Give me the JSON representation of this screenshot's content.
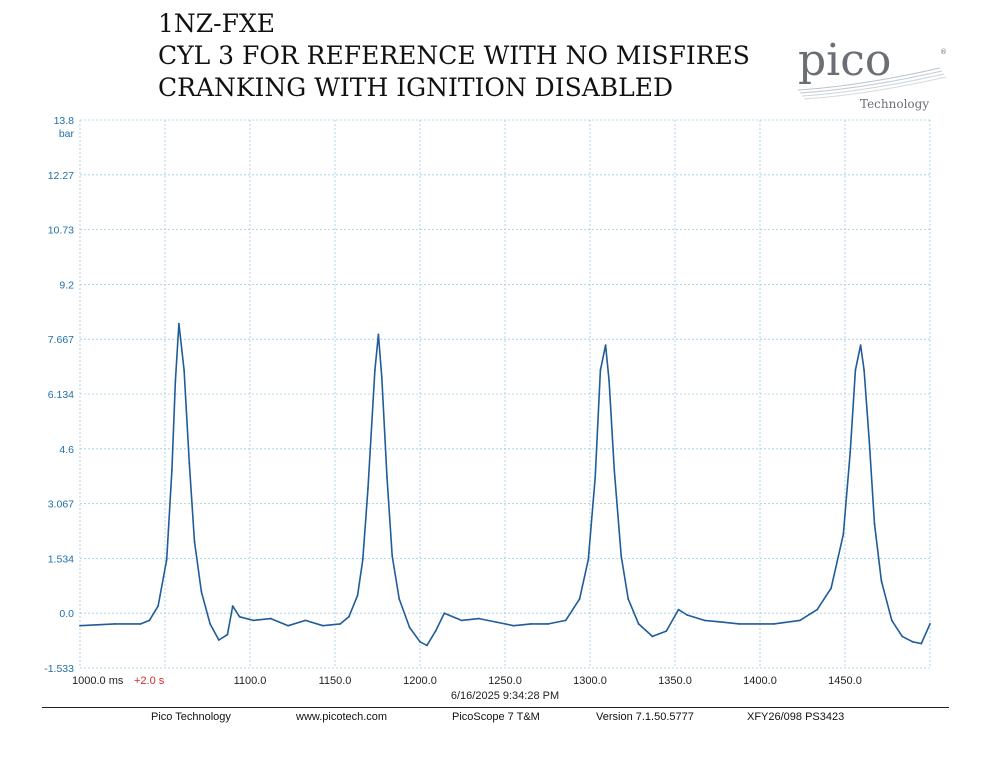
{
  "title": {
    "line1": "1NZ-FXE",
    "line2": "CYL 3 FOR REFERENCE WITH NO MISFIRES",
    "line3": "CRANKING WITH IGNITION DISABLED"
  },
  "logo": {
    "brand": "pico",
    "sub": "Technology"
  },
  "chart_data": {
    "type": "line",
    "title": "1NZ-FXE",
    "ylabel": "bar",
    "xlabel": "",
    "x_unit": "ms",
    "xlim": [
      1000,
      1490
    ],
    "ylim": [
      -1.533,
      13.8
    ],
    "y_ticks": [
      "13.8",
      "12.27",
      "10.73",
      "9.2",
      "7.667",
      "6.134",
      "4.6",
      "3.067",
      "1.534",
      "0.0",
      "-1.533"
    ],
    "x_ticks": [
      "1000.0 ms",
      "1100.0",
      "1150.0",
      "1200.0",
      "1250.0",
      "1300.0",
      "1350.0",
      "1400.0",
      "1450.0"
    ],
    "x_offset_label": "+2.0 s",
    "timestamp": "6/16/2025 9:34:28 PM",
    "grid": true,
    "series": [
      {
        "color": "#1f5c99",
        "x": [
          1000,
          1020,
          1035,
          1040,
          1045,
          1050,
          1053,
          1055,
          1057,
          1060,
          1063,
          1066,
          1070,
          1075,
          1080,
          1085,
          1088,
          1092,
          1100,
          1110,
          1120,
          1130,
          1140,
          1150,
          1155,
          1160,
          1163,
          1166,
          1170,
          1172,
          1174,
          1177,
          1180,
          1184,
          1190,
          1196,
          1200,
          1205,
          1210,
          1220,
          1230,
          1240,
          1250,
          1260,
          1270,
          1280,
          1288,
          1293,
          1297,
          1300,
          1303,
          1305,
          1308,
          1312,
          1316,
          1322,
          1330,
          1338,
          1345,
          1350,
          1360,
          1370,
          1380,
          1400,
          1415,
          1425,
          1433,
          1440,
          1444,
          1447,
          1450,
          1452,
          1455,
          1458,
          1462,
          1468,
          1474,
          1480,
          1485,
          1490
        ],
        "y": [
          -0.35,
          -0.3,
          -0.3,
          -0.2,
          0.2,
          1.5,
          4.0,
          6.5,
          8.1,
          6.8,
          4.2,
          2.0,
          0.6,
          -0.3,
          -0.75,
          -0.6,
          0.2,
          -0.1,
          -0.2,
          -0.15,
          -0.35,
          -0.2,
          -0.35,
          -0.3,
          -0.1,
          0.5,
          1.5,
          3.5,
          6.8,
          7.8,
          6.6,
          3.8,
          1.6,
          0.4,
          -0.4,
          -0.8,
          -0.9,
          -0.5,
          0.0,
          -0.2,
          -0.15,
          -0.25,
          -0.35,
          -0.3,
          -0.3,
          -0.2,
          0.4,
          1.5,
          3.8,
          6.8,
          7.5,
          6.5,
          4.0,
          1.6,
          0.4,
          -0.3,
          -0.65,
          -0.5,
          0.1,
          -0.05,
          -0.2,
          -0.25,
          -0.3,
          -0.3,
          -0.2,
          0.1,
          0.7,
          2.2,
          4.5,
          6.8,
          7.5,
          6.8,
          4.8,
          2.5,
          0.9,
          -0.2,
          -0.65,
          -0.8,
          -0.85,
          -0.3
        ]
      }
    ]
  },
  "footer": {
    "company": "Pico Technology",
    "website": "www.picotech.com",
    "product": "PicoScope 7 T&M",
    "version": "Version 7.1.50.5777",
    "device": "XFY26/098 PS3423"
  }
}
